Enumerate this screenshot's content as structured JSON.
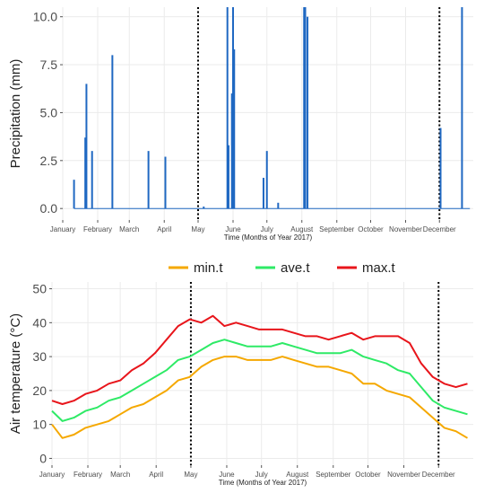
{
  "chart_data": [
    {
      "type": "bar",
      "xlabel": "Time (Months of Year 2017)",
      "ylabel": "Precipitation (mm)",
      "ylim": [
        -0.6,
        10.5
      ],
      "yticks": [
        0.0,
        2.5,
        5.0,
        7.5,
        10.0
      ],
      "ytick_labels": [
        "0.0",
        "2.5",
        "5.0",
        "7.5",
        "10.0"
      ],
      "months": [
        "January",
        "February",
        "March",
        "April",
        "May",
        "June",
        "July",
        "August",
        "September",
        "October",
        "November",
        "December"
      ],
      "grid": true,
      "color": "#1f68c2",
      "days": [
        11,
        21,
        22,
        27,
        45,
        77,
        92,
        126,
        147,
        148,
        151,
        152,
        153,
        179,
        182,
        192,
        215,
        216,
        218,
        336,
        355
      ],
      "values": [
        1.5,
        3.7,
        6.5,
        3.0,
        8.0,
        3.0,
        2.7,
        0.1,
        10.5,
        3.3,
        6.0,
        10.5,
        8.3,
        1.6,
        3.0,
        0.3,
        10.5,
        10.5,
        10.0,
        4.2,
        10.5
      ],
      "vlines_day": [
        121,
        335
      ]
    },
    {
      "type": "line",
      "xlabel": "Time (Months of Year 2017)",
      "ylabel": "Air temperature  (°C)",
      "ylim": [
        -2,
        52
      ],
      "yticks": [
        0,
        10,
        20,
        30,
        40,
        50
      ],
      "ytick_labels": [
        "0",
        "10",
        "20",
        "30",
        "40",
        "50"
      ],
      "months": [
        "January",
        "February",
        "March",
        "April",
        "May",
        "June",
        "July",
        "August",
        "September",
        "October",
        "November",
        "December"
      ],
      "grid": true,
      "legend_position": "top",
      "vlines_day": [
        121,
        335
      ],
      "series": [
        {
          "name": "min.t",
          "color": "#f5a800",
          "x": [
            1,
            10,
            20,
            30,
            40,
            50,
            60,
            70,
            80,
            90,
            100,
            110,
            120,
            130,
            140,
            150,
            160,
            170,
            180,
            190,
            200,
            210,
            220,
            230,
            240,
            250,
            260,
            270,
            280,
            290,
            300,
            310,
            320,
            330,
            340,
            350,
            360
          ],
          "values": [
            10,
            6,
            7,
            9,
            10,
            11,
            13,
            15,
            16,
            18,
            20,
            23,
            24,
            27,
            29,
            30,
            30,
            29,
            29,
            29,
            30,
            29,
            28,
            27,
            27,
            26,
            25,
            22,
            22,
            20,
            19,
            18,
            15,
            12,
            9,
            8,
            6
          ]
        },
        {
          "name": "ave.t",
          "color": "#2eea66",
          "x": [
            1,
            10,
            20,
            30,
            40,
            50,
            60,
            70,
            80,
            90,
            100,
            110,
            120,
            130,
            140,
            150,
            160,
            170,
            180,
            190,
            200,
            210,
            220,
            230,
            240,
            250,
            260,
            270,
            280,
            290,
            300,
            310,
            320,
            330,
            340,
            350,
            360
          ],
          "values": [
            14,
            11,
            12,
            14,
            15,
            17,
            18,
            20,
            22,
            24,
            26,
            29,
            30,
            32,
            34,
            35,
            34,
            33,
            33,
            33,
            34,
            33,
            32,
            31,
            31,
            31,
            32,
            30,
            29,
            28,
            26,
            25,
            21,
            17,
            15,
            14,
            13
          ]
        },
        {
          "name": "max.t",
          "color": "#e8151b",
          "x": [
            1,
            10,
            20,
            30,
            40,
            50,
            60,
            70,
            80,
            90,
            100,
            110,
            120,
            130,
            140,
            150,
            160,
            170,
            180,
            190,
            200,
            210,
            220,
            230,
            240,
            250,
            260,
            270,
            280,
            290,
            300,
            310,
            320,
            330,
            340,
            350,
            360
          ],
          "values": [
            17,
            16,
            17,
            19,
            20,
            22,
            23,
            26,
            28,
            31,
            35,
            39,
            41,
            40,
            42,
            39,
            40,
            39,
            38,
            38,
            38,
            37,
            36,
            36,
            35,
            36,
            37,
            35,
            36,
            36,
            36,
            34,
            28,
            24,
            22,
            21,
            22
          ]
        }
      ]
    }
  ]
}
